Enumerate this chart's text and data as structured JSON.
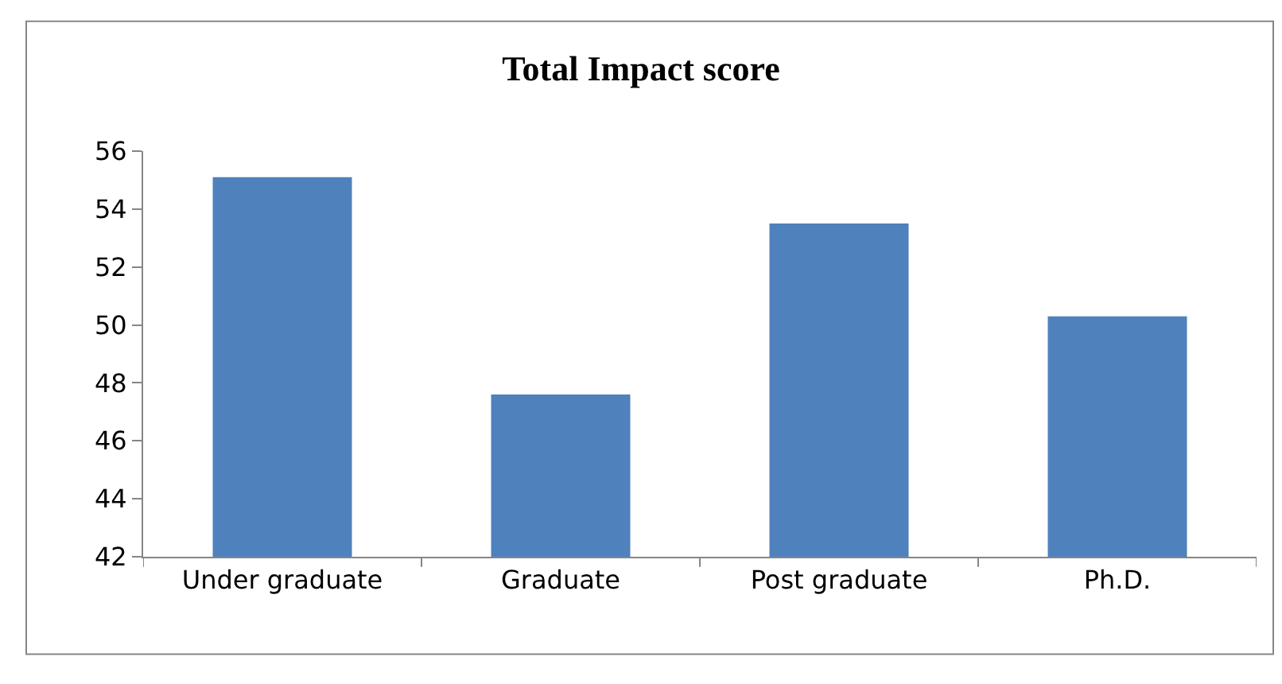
{
  "chart_data": {
    "type": "bar",
    "title": "Total Impact score",
    "categories": [
      "Under graduate",
      "Graduate",
      "Post graduate",
      "Ph.D."
    ],
    "values": [
      55.1,
      47.6,
      53.5,
      50.3
    ],
    "color": "#4f81bd",
    "ylim": [
      42,
      56
    ],
    "yticks": [
      42,
      44,
      46,
      48,
      50,
      52,
      54,
      56
    ]
  }
}
